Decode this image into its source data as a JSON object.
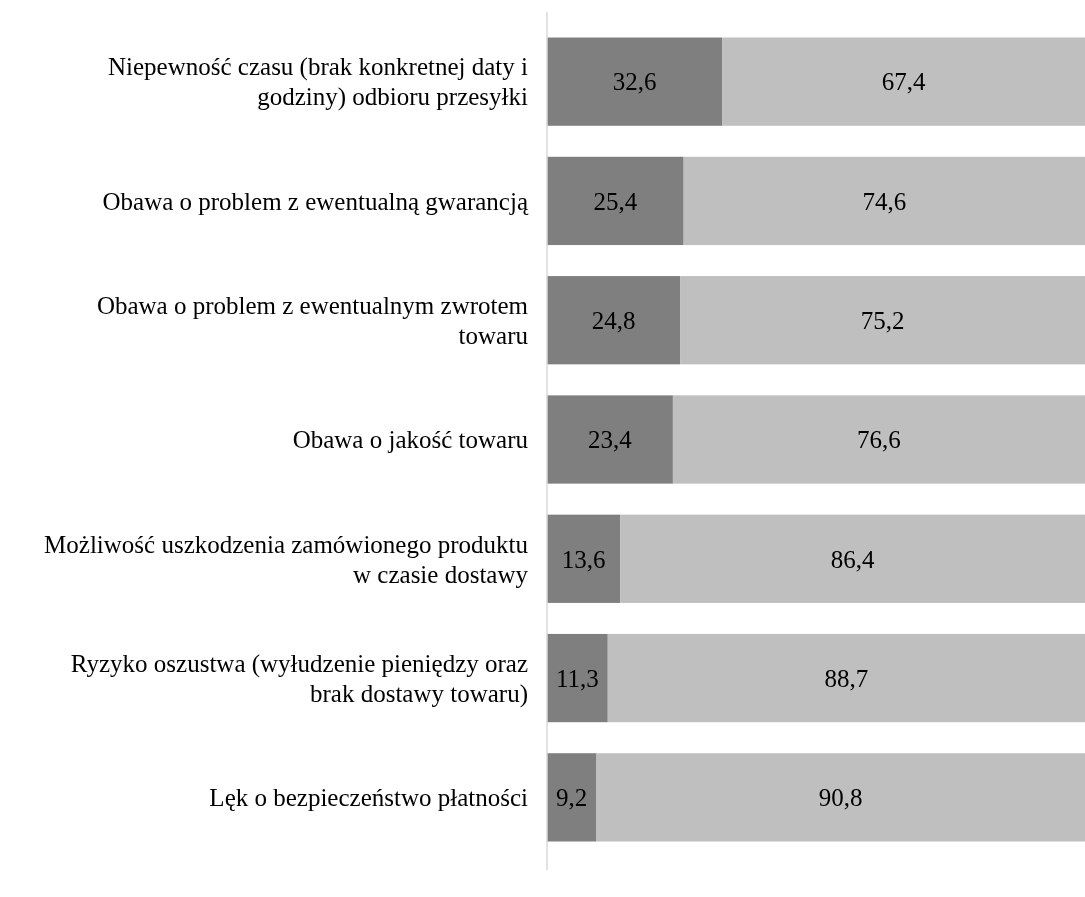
{
  "chart_data": {
    "type": "bar",
    "orientation": "horizontal",
    "stacked": true,
    "categories": [
      "Niepewność czasu (brak konkretnej daty i godziny) odbioru przesyłki",
      "Obawa o problem z ewentualną gwarancją",
      "Obawa o problem z ewentualnym zwrotem towaru",
      "Obawa o jakość towaru",
      "Możliwość uszkodzenia zamówionego produktu w czasie dostawy",
      "Ryzyko oszustwa (wyłudzenie pieniędzy oraz brak dostawy towaru)",
      "Lęk o bezpieczeństwo płatności"
    ],
    "series": [
      {
        "color": "#7f7f7f",
        "values": [
          32.6,
          25.4,
          24.8,
          23.4,
          13.6,
          11.3,
          9.2
        ],
        "value_labels": [
          "32,6",
          "25,4",
          "24,8",
          "23,4",
          "13,6",
          "11,3",
          "9,2"
        ]
      },
      {
        "color": "#bfbfbf",
        "values": [
          67.4,
          74.6,
          75.2,
          76.6,
          86.4,
          88.7,
          90.8
        ],
        "value_labels": [
          "67,4",
          "74,6",
          "75,2",
          "76,6",
          "86,4",
          "88,7",
          "90,8"
        ]
      }
    ]
  }
}
